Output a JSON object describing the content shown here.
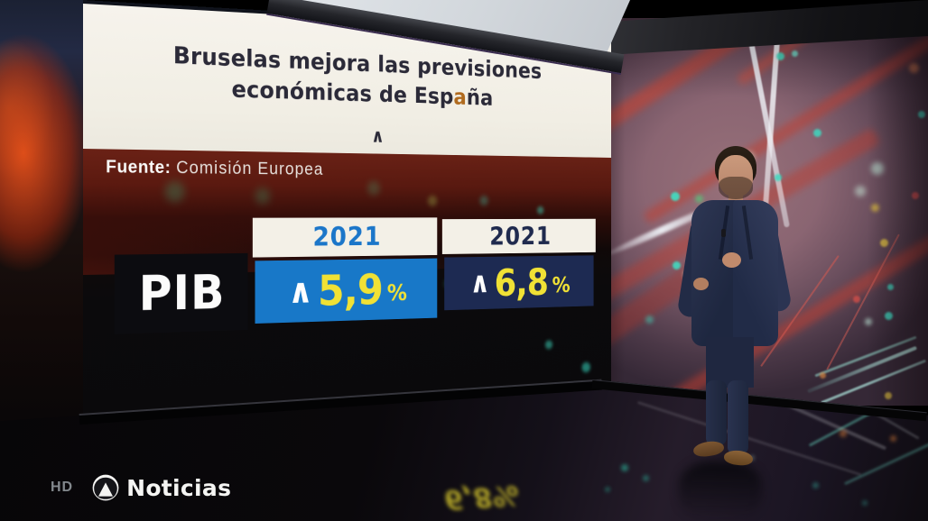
{
  "broadcast": {
    "watermark_hd": "HD",
    "channel_name": "Noticias"
  },
  "screen_graphic": {
    "headline_line1": "Bruselas mejora las previsiones",
    "headline_line2_pre": "económicas de Esp",
    "headline_line2_highlight": "a",
    "headline_line2_post": "ña",
    "headline_caret": "∧",
    "source_label": "Fuente:",
    "source_value": "Comisión Europea",
    "pib_table": {
      "row_label": "PIB",
      "columns": [
        {
          "year": "2021",
          "trend_icon": "∧",
          "value": "5,9",
          "unit": "%"
        },
        {
          "year": "2021",
          "trend_icon": "∧",
          "value": "6,8",
          "unit": "%"
        }
      ]
    }
  },
  "floor": {
    "reflection_text": "6,8%"
  },
  "colors": {
    "panel_cream": "#f2efe6",
    "headline_text": "#2b2a38",
    "highlight_orange": "#b06a1e",
    "source_bar_maroon": "#5e1d12",
    "pib_box_black": "#0c0c10",
    "col1_box_blue": "#1878c8",
    "col1_year_blue": "#1b76c9",
    "col2_box_navy": "#1d2a52",
    "col2_year_navy": "#1f2a4e",
    "value_yellow": "#f0e135",
    "wall_mauve": "#8a6572",
    "bokeh_teal": "#3fe0c4"
  }
}
